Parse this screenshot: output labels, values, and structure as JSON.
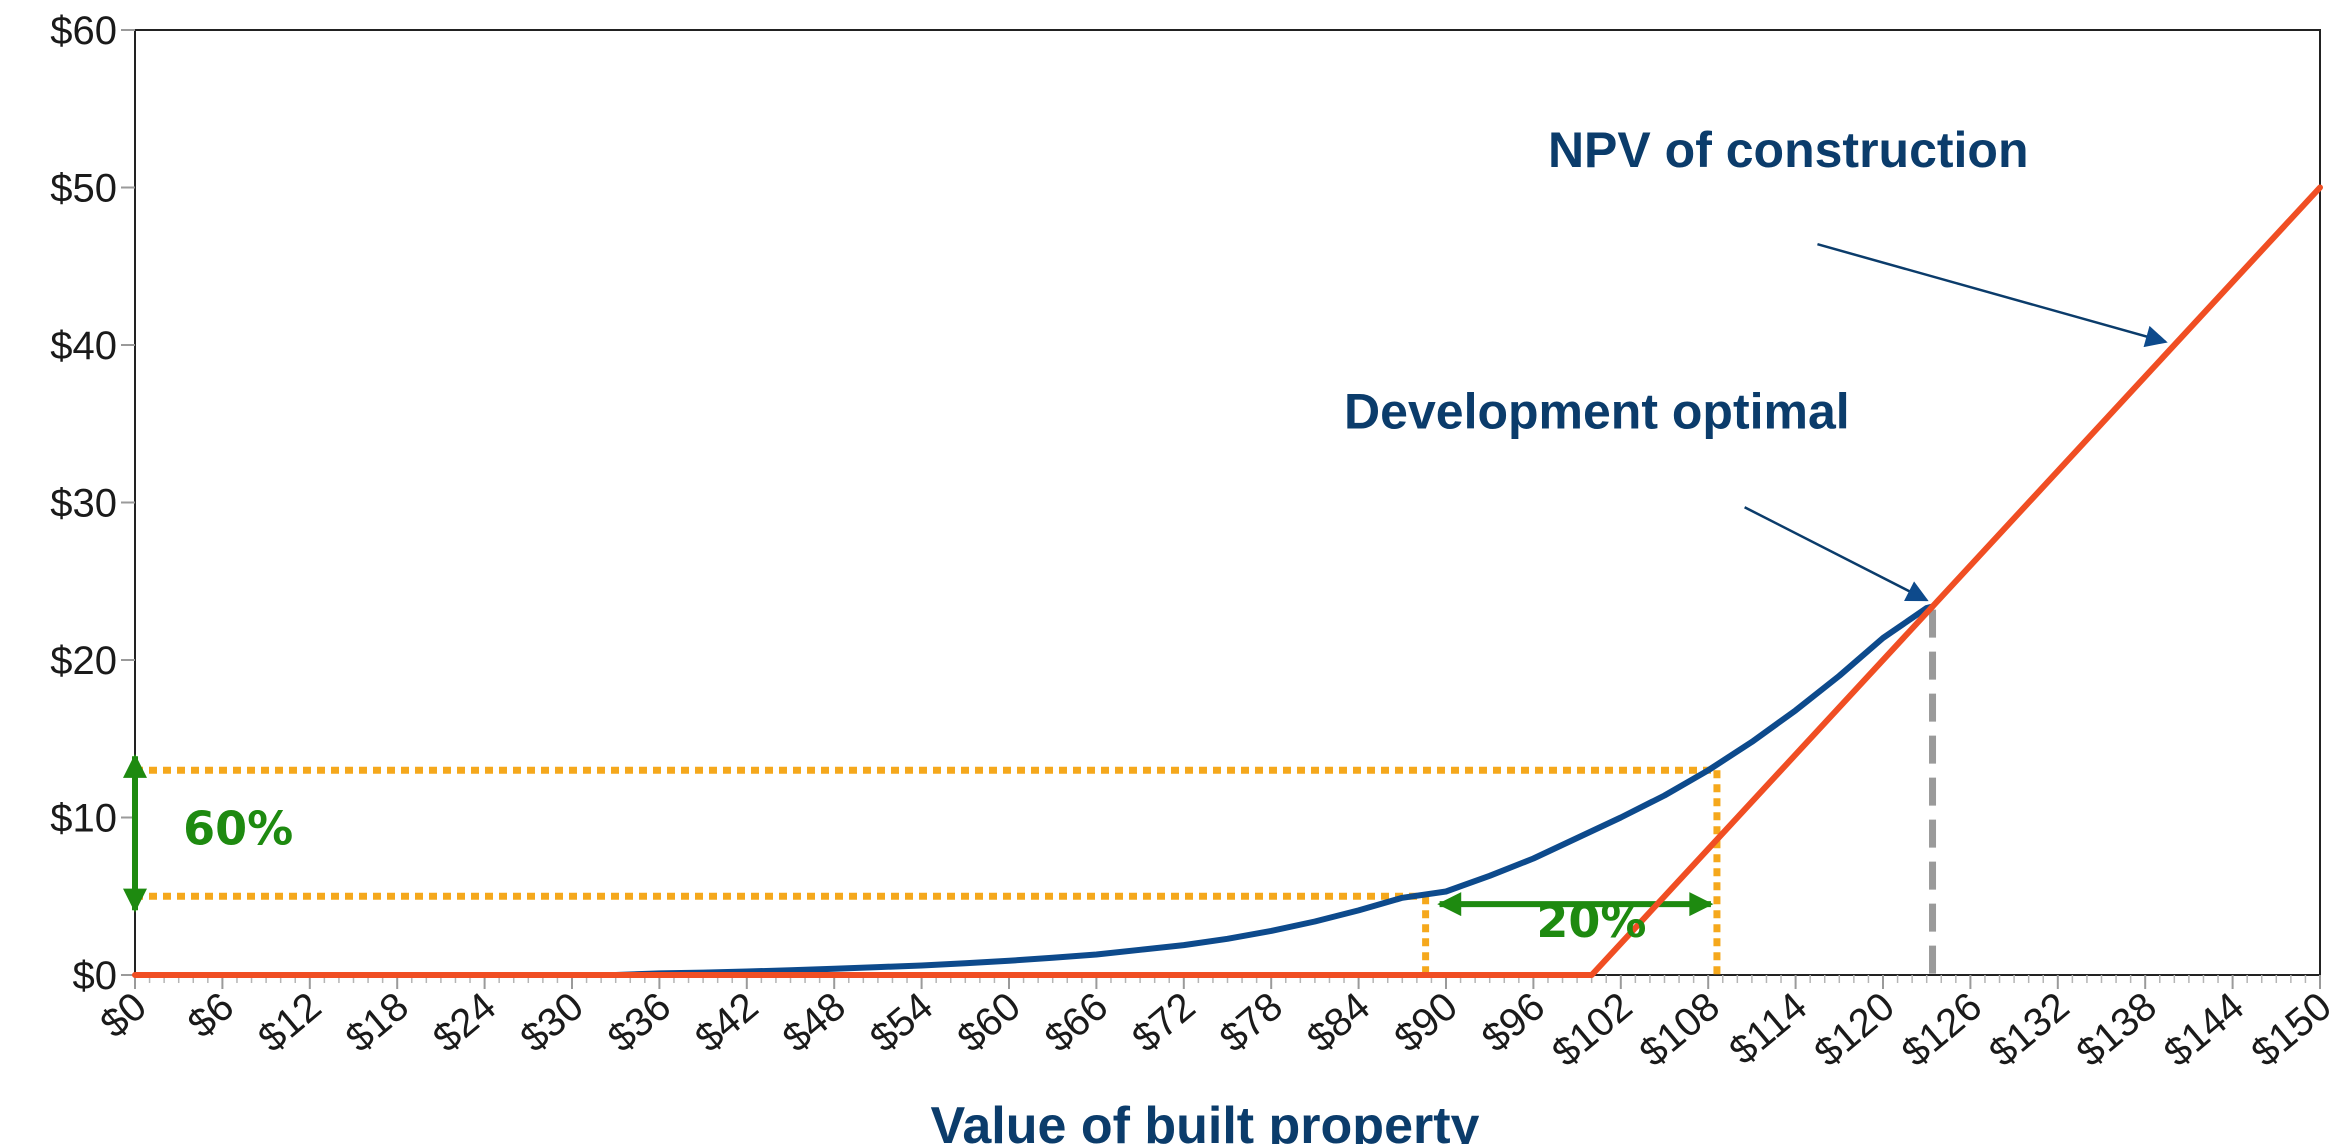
{
  "chart_data": {
    "type": "line",
    "title": "",
    "xlabel": "Value of built property",
    "ylabel": "",
    "xlim": [
      0,
      150
    ],
    "ylim": [
      0,
      60
    ],
    "x_ticks": [
      "$0",
      "$6",
      "$12",
      "$18",
      "$24",
      "$30",
      "$36",
      "$42",
      "$48",
      "$54",
      "$60",
      "$66",
      "$72",
      "$78",
      "$84",
      "$90",
      "$96",
      "$102",
      "$108",
      "$114",
      "$120",
      "$126",
      "$132",
      "$138",
      "$144",
      "$150"
    ],
    "y_ticks": [
      "$0",
      "$10",
      "$20",
      "$30",
      "$40",
      "$50",
      "$60"
    ],
    "x_tick_values": [
      0,
      6,
      12,
      18,
      24,
      30,
      36,
      42,
      48,
      54,
      60,
      66,
      72,
      78,
      84,
      90,
      96,
      102,
      108,
      114,
      120,
      126,
      132,
      138,
      144,
      150
    ],
    "y_tick_values": [
      0,
      10,
      20,
      30,
      40,
      50,
      60
    ],
    "grid": false,
    "legend": "none",
    "series": [
      {
        "id": "option-value",
        "color": "#0d4a8c",
        "x": [
          33,
          36,
          39,
          42,
          45,
          48,
          51,
          54,
          57,
          60,
          63,
          66,
          69,
          72,
          75,
          78,
          81,
          84,
          87,
          90,
          93,
          96,
          99,
          102,
          105,
          108,
          111,
          114,
          117,
          120,
          123,
          123.4
        ],
        "y": [
          0,
          0.1,
          0.15,
          0.22,
          0.3,
          0.4,
          0.5,
          0.6,
          0.75,
          0.9,
          1.1,
          1.3,
          1.6,
          1.9,
          2.3,
          2.8,
          3.4,
          4.1,
          4.9,
          5.3,
          6.3,
          7.4,
          8.7,
          10.0,
          11.4,
          13.0,
          14.8,
          16.8,
          19.0,
          21.4,
          23.3,
          23.4
        ]
      },
      {
        "id": "npv-construction",
        "color": "#f04e23",
        "x": [
          0,
          100,
          150
        ],
        "y": [
          0,
          0,
          50
        ]
      }
    ],
    "annotations": [
      {
        "id": "npv-of-construction",
        "text": "NPV of construction",
        "label_at": [
          97,
          51.3
        ],
        "arrow_from": [
          115.5,
          46.4
        ],
        "arrow_to": [
          139.4,
          40.2
        ]
      },
      {
        "id": "development-optimal",
        "text": "Development optimal",
        "label_at": [
          83,
          34.7
        ],
        "arrow_from": [
          110.5,
          29.7
        ],
        "arrow_to": [
          123.0,
          23.8
        ]
      },
      {
        "id": "sixty-percent",
        "text": "60%",
        "label_at": [
          3.3,
          8.3
        ]
      },
      {
        "id": "twenty-percent",
        "text": "20%",
        "label_at": [
          96.2,
          2.4
        ]
      }
    ],
    "guides": {
      "optimal_x": 123.4,
      "low_point": [
        88.6,
        5.0
      ],
      "high_point": [
        108.6,
        13.0
      ]
    },
    "colors": {
      "option_value": "#0d4a8c",
      "npv": "#f04e23",
      "guide_dotted": "#f5a81c",
      "arrow_green": "#1e8a10",
      "optimal_dashed": "#9a9a9a",
      "annotation_text": "#0b3c6b"
    }
  }
}
